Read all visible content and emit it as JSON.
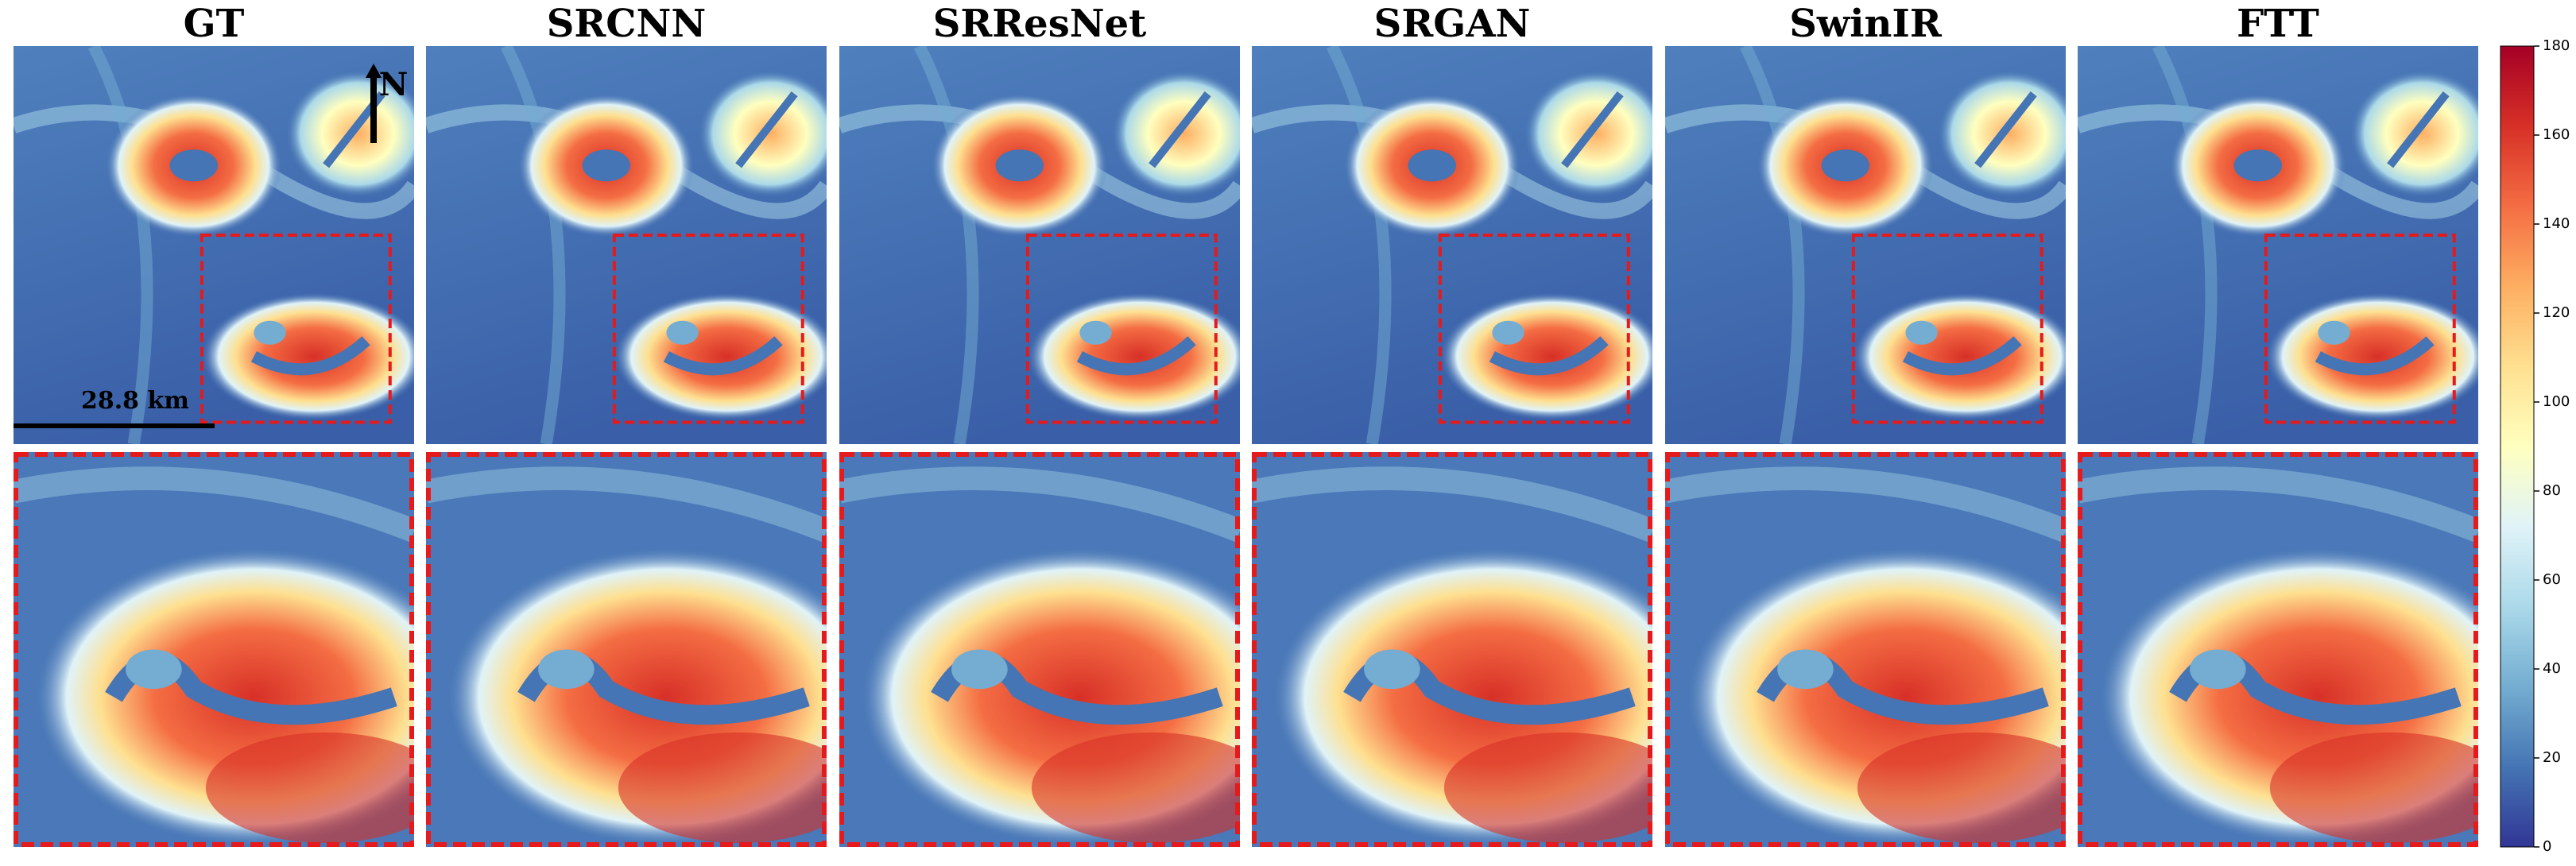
{
  "panels": [
    "GT",
    "SRCNN",
    "SRResNet",
    "SRGAN",
    "SwinIR",
    "FTT"
  ],
  "scale_bar": "28.8 km",
  "north": "N",
  "colorbar": {
    "lim": [
      0,
      180
    ],
    "ticks": [
      0,
      20,
      40,
      60,
      80,
      100,
      120,
      140,
      160,
      180
    ],
    "colors": [
      "#313695",
      "#4575b4",
      "#74add1",
      "#abd9e9",
      "#e0f3f8",
      "#ffffbf",
      "#fee090",
      "#fdae61",
      "#f46d43",
      "#d73027",
      "#a50026"
    ]
  }
}
